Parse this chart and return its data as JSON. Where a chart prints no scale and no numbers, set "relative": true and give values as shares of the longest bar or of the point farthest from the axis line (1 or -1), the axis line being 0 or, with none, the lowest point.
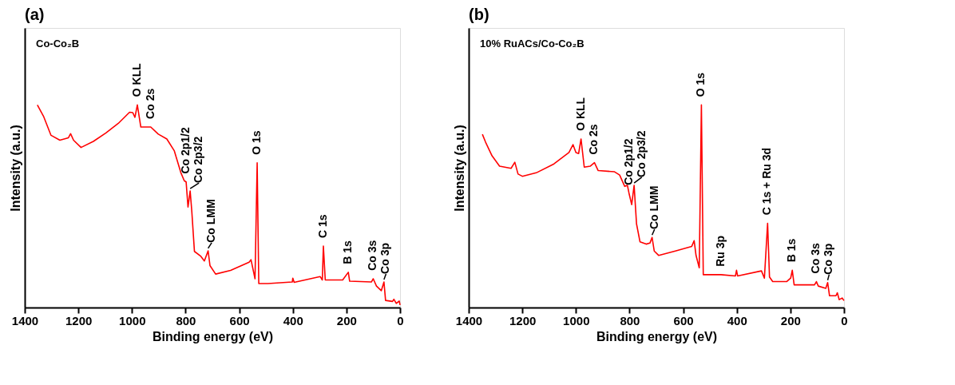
{
  "chart_data": [
    {
      "type": "line",
      "title": "(a)",
      "xlabel": "Binding energy (eV)",
      "ylabel": "Intensity (a.u.)",
      "relative": true,
      "grid": false,
      "xlim": [
        1400,
        0
      ],
      "xticks": [
        1400,
        1200,
        1000,
        800,
        600,
        400,
        200,
        0
      ],
      "series": [
        {
          "color": "#ff0000",
          "x": [
            1353,
            1330,
            1302,
            1269,
            1237,
            1229,
            1218,
            1190,
            1144,
            1097,
            1051,
            1009,
            997,
            989,
            980,
            967,
            939,
            930,
            902,
            870,
            842,
            818,
            805,
            798,
            791,
            783,
            777,
            767,
            744,
            730,
            716,
            709,
            688,
            632,
            563,
            556,
            541,
            533,
            527,
            493,
            402,
            400,
            395,
            298,
            290,
            286,
            279,
            214,
            193,
            188,
            107,
            100,
            88,
            70,
            60,
            54,
            28,
            23,
            14,
            3,
            0
          ],
          "values": [
            1.0,
            0.944,
            0.85,
            0.826,
            0.838,
            0.858,
            0.826,
            0.79,
            0.82,
            0.862,
            0.909,
            0.964,
            0.962,
            0.939,
            1.0,
            0.891,
            0.891,
            0.891,
            0.856,
            0.832,
            0.773,
            0.667,
            0.626,
            0.62,
            0.496,
            0.575,
            0.478,
            0.277,
            0.254,
            0.23,
            0.28,
            0.207,
            0.165,
            0.183,
            0.224,
            0.236,
            0.142,
            0.714,
            0.118,
            0.118,
            0.126,
            0.145,
            0.124,
            0.153,
            0.136,
            0.303,
            0.136,
            0.136,
            0.174,
            0.13,
            0.126,
            0.142,
            0.106,
            0.083,
            0.126,
            0.035,
            0.03,
            0.041,
            0.02,
            0.032,
            0.012
          ]
        }
      ],
      "annotations": [
        "Co-Co₂B",
        {
          "text": "O KLL",
          "x": 980,
          "y": 1.0
        },
        {
          "text": "Co 2s",
          "x": 930,
          "y": 0.891
        },
        {
          "text": "Co 2p1/2",
          "x": 798,
          "y": 0.62
        },
        {
          "text": "Co 2p3/2",
          "x": 783,
          "y": 0.575
        },
        {
          "text": "Co LMM",
          "x": 716,
          "y": 0.28
        },
        {
          "text": "O 1s",
          "x": 533,
          "y": 0.714
        },
        {
          "text": "C 1s",
          "x": 286,
          "y": 0.303
        },
        {
          "text": "B 1s",
          "x": 193,
          "y": 0.174
        },
        {
          "text": "Co 3s",
          "x": 100,
          "y": 0.142
        },
        {
          "text": "Co 3p",
          "x": 60,
          "y": 0.126
        }
      ]
    },
    {
      "type": "line",
      "title": "(b)",
      "xlabel": "Binding energy (eV)",
      "ylabel": "Intensity (a.u.)",
      "relative": true,
      "grid": false,
      "xlim": [
        1400,
        0
      ],
      "xticks": [
        1400,
        1200,
        1000,
        800,
        600,
        400,
        200,
        0
      ],
      "series": [
        {
          "color": "#ff0000",
          "x": [
            1349,
            1337,
            1313,
            1285,
            1242,
            1228,
            1216,
            1200,
            1148,
            1082,
            1026,
            1011,
            1000,
            990,
            981,
            969,
            946,
            931,
            917,
            856,
            837,
            818,
            808,
            802,
            792,
            783,
            774,
            761,
            738,
            724,
            716,
            708,
            691,
            629,
            568,
            559,
            552,
            540,
            532,
            525,
            459,
            405,
            401,
            397,
            308,
            297,
            285,
            278,
            266,
            214,
            199,
            193,
            186,
            110,
            103,
            96,
            68,
            61,
            54,
            30,
            25,
            18,
            7,
            0
          ],
          "values": [
            0.855,
            0.816,
            0.749,
            0.698,
            0.687,
            0.717,
            0.659,
            0.648,
            0.665,
            0.709,
            0.765,
            0.804,
            0.765,
            0.76,
            0.832,
            0.693,
            0.698,
            0.715,
            0.676,
            0.67,
            0.654,
            0.598,
            0.603,
            0.564,
            0.508,
            0.603,
            0.413,
            0.324,
            0.313,
            0.318,
            0.346,
            0.279,
            0.257,
            0.279,
            0.302,
            0.33,
            0.257,
            0.196,
            1.0,
            0.162,
            0.162,
            0.156,
            0.184,
            0.156,
            0.181,
            0.145,
            0.416,
            0.151,
            0.128,
            0.128,
            0.145,
            0.184,
            0.112,
            0.112,
            0.128,
            0.106,
            0.095,
            0.123,
            0.058,
            0.058,
            0.073,
            0.039,
            0.047,
            0.034
          ]
        }
      ],
      "annotations": [
        "10% RuACs/Co-Co₂B",
        {
          "text": "O KLL",
          "x": 981,
          "y": 0.832
        },
        {
          "text": "Co 2s",
          "x": 931,
          "y": 0.715
        },
        {
          "text": "Co 2p1/2",
          "x": 802,
          "y": 0.564
        },
        {
          "text": "Co 2p3/2",
          "x": 783,
          "y": 0.603
        },
        {
          "text": "Co LMM",
          "x": 716,
          "y": 0.346
        },
        {
          "text": "O 1s",
          "x": 532,
          "y": 1.0
        },
        {
          "text": "Ru 3p",
          "x": 459,
          "y": 0.162
        },
        {
          "text": "C 1s + Ru 3d",
          "x": 285,
          "y": 0.416
        },
        {
          "text": "B 1s",
          "x": 193,
          "y": 0.184
        },
        {
          "text": "Co 3s",
          "x": 103,
          "y": 0.128
        },
        {
          "text": "Co 3p",
          "x": 61,
          "y": 0.123
        }
      ]
    }
  ]
}
